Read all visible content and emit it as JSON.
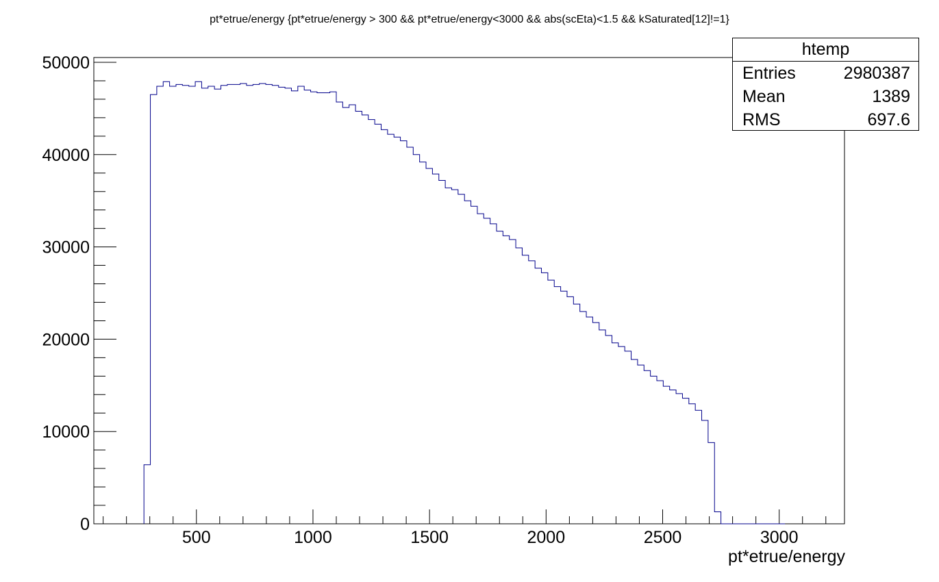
{
  "title": "pt*etrue/energy {pt*etrue/energy > 300 && pt*etrue/energy<3000 && abs(scEta)<1.5 && kSaturated[12]!=1}",
  "stats": {
    "name": "htemp",
    "rows": [
      {
        "label": "Entries",
        "value": "2980387"
      },
      {
        "label": "Mean",
        "value": "1389"
      },
      {
        "label": "RMS",
        "value": "697.6"
      }
    ]
  },
  "colors": {
    "line": "#00008b",
    "axis": "#000000"
  },
  "chart_data": {
    "type": "bar",
    "style": "step-histogram",
    "title": "pt*etrue/energy {pt*etrue/energy > 300 && pt*etrue/energy<3000 && abs(scEta)<1.5 && kSaturated[12]!=1}",
    "xlabel": "pt*etrue/energy",
    "ylabel": "",
    "xlim": [
      60,
      3280
    ],
    "ylim": [
      0,
      50000
    ],
    "xticks": [
      500,
      1000,
      1500,
      2000,
      2500,
      3000
    ],
    "yticks": [
      0,
      10000,
      20000,
      30000,
      40000,
      50000
    ],
    "bin_edges": [
      275,
      3025
    ],
    "bin_count": 100,
    "values": [
      6400,
      46500,
      47400,
      47900,
      47400,
      47600,
      47500,
      47400,
      47900,
      47200,
      47400,
      47100,
      47500,
      47600,
      47600,
      47700,
      47500,
      47600,
      47700,
      47600,
      47500,
      47300,
      47200,
      46900,
      47400,
      47000,
      46800,
      46700,
      46700,
      46800,
      45700,
      45100,
      45400,
      44700,
      44300,
      43800,
      43300,
      42700,
      42200,
      41900,
      41500,
      40800,
      40000,
      39200,
      38500,
      37900,
      37200,
      36400,
      36200,
      35700,
      35000,
      34400,
      33600,
      33100,
      32500,
      31700,
      31200,
      30800,
      29900,
      29100,
      28500,
      27700,
      27200,
      26400,
      25700,
      25200,
      24600,
      23800,
      23000,
      22400,
      21800,
      21000,
      20400,
      19600,
      19200,
      18700,
      17800,
      17200,
      16600,
      16000,
      15500,
      14900,
      14500,
      14100,
      13600,
      13000,
      12300,
      11200,
      8800,
      1300,
      0,
      0,
      0,
      0,
      0,
      0,
      0,
      0,
      0,
      0
    ],
    "grid": false,
    "legend": "top-right"
  }
}
